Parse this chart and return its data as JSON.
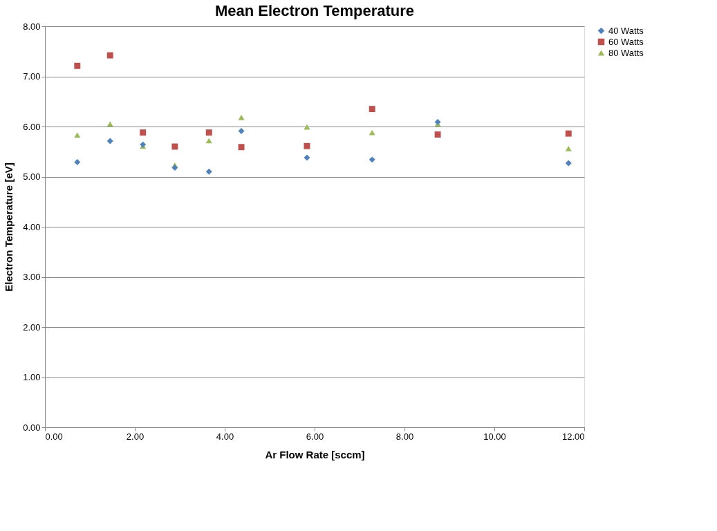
{
  "chart_data": {
    "type": "scatter",
    "title": "Mean Electron Temperature",
    "xlabel": "Ar Flow Rate [sccm]",
    "ylabel": "Electron Temperature [eV]",
    "x": [
      0.72,
      1.45,
      2.18,
      2.89,
      3.65,
      4.37,
      5.83,
      7.28,
      8.74,
      11.65
    ],
    "series": [
      {
        "name": "40 Watts",
        "color": "#4f81bd",
        "marker": "diamond",
        "values": [
          5.29,
          5.71,
          5.64,
          5.18,
          5.1,
          5.91,
          5.38,
          5.34,
          6.09,
          5.27
        ]
      },
      {
        "name": "60 Watts",
        "color": "#c0504d",
        "marker": "square",
        "values": [
          7.21,
          7.42,
          5.88,
          5.6,
          5.88,
          5.59,
          5.61,
          6.35,
          5.84,
          5.86
        ]
      },
      {
        "name": "80 Watts",
        "color": "#9bbb59",
        "marker": "triangle",
        "values": [
          5.83,
          6.05,
          5.61,
          5.23,
          5.72,
          6.18,
          5.99,
          5.88,
          6.05,
          5.56
        ]
      }
    ],
    "xlim": [
      0,
      12
    ],
    "ylim": [
      0,
      8
    ],
    "xticks": [
      {
        "value": 0,
        "label": "0.00"
      },
      {
        "value": 2,
        "label": "2.00"
      },
      {
        "value": 4,
        "label": "4.00"
      },
      {
        "value": 6,
        "label": "6.00"
      },
      {
        "value": 8,
        "label": "8.00"
      },
      {
        "value": 10,
        "label": "10.00"
      },
      {
        "value": 12,
        "label": "12.00"
      }
    ],
    "yticks": [
      {
        "value": 0,
        "label": "0.00"
      },
      {
        "value": 1,
        "label": "1.00"
      },
      {
        "value": 2,
        "label": "2.00"
      },
      {
        "value": 3,
        "label": "3.00"
      },
      {
        "value": 4,
        "label": "4.00"
      },
      {
        "value": 5,
        "label": "5.00"
      },
      {
        "value": 6,
        "label": "6.00"
      },
      {
        "value": 7,
        "label": "7.00"
      },
      {
        "value": 8,
        "label": "8.00"
      }
    ],
    "grid": "y",
    "legend": "right"
  }
}
